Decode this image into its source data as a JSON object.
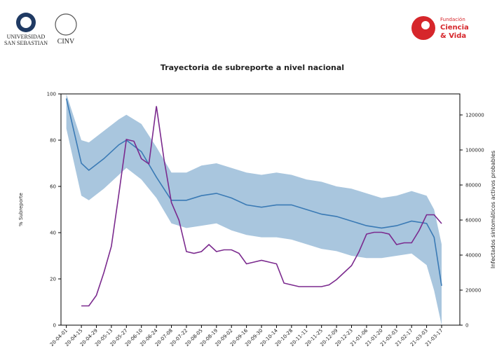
{
  "header": {
    "university_line1": "UNIVERSIDAD",
    "university_line2": "SAN SEBASTIAN",
    "institute": "CINV",
    "foundation_line1": "Fundación",
    "foundation_line2": "Ciencia",
    "foundation_line3": "& Vida"
  },
  "chart_data": {
    "type": "line",
    "title": "Trayectoria de subreporte a nivel nacional",
    "y_label": "% Subreporte",
    "y2_label": "Infectados sintomáticos activos probables",
    "xlim": [
      "2020-03-27",
      "2021-04-03"
    ],
    "xticks": [
      {
        "value": "2020-04-01",
        "label": "20-04-01"
      },
      {
        "value": "2020-04-15",
        "label": "20-04-15"
      },
      {
        "value": "2020-04-29",
        "label": "20-04-29"
      },
      {
        "value": "2020-05-13",
        "label": "20-05-13"
      },
      {
        "value": "2020-05-27",
        "label": "20-05-27"
      },
      {
        "value": "2020-06-10",
        "label": "20-06-10"
      },
      {
        "value": "2020-06-24",
        "label": "20-06-24"
      },
      {
        "value": "2020-07-08",
        "label": "20-07-08"
      },
      {
        "value": "2020-07-22",
        "label": "20-07-22"
      },
      {
        "value": "2020-08-05",
        "label": "20-08-05"
      },
      {
        "value": "2020-08-19",
        "label": "20-08-19"
      },
      {
        "value": "2020-09-02",
        "label": "20-09-02"
      },
      {
        "value": "2020-09-16",
        "label": "20-09-16"
      },
      {
        "value": "2020-09-30",
        "label": "20-09-30"
      },
      {
        "value": "2020-10-14",
        "label": "20-10-14"
      },
      {
        "value": "2020-10-28",
        "label": "20-10-28"
      },
      {
        "value": "2020-11-11",
        "label": "20-11-11"
      },
      {
        "value": "2020-11-25",
        "label": "20-11-25"
      },
      {
        "value": "2020-12-09",
        "label": "20-12-09"
      },
      {
        "value": "2020-12-23",
        "label": "20-12-23"
      },
      {
        "value": "2021-01-06",
        "label": "21-01-06"
      },
      {
        "value": "2021-01-20",
        "label": "21-01-20"
      },
      {
        "value": "2021-02-03",
        "label": "21-02-03"
      },
      {
        "value": "2021-02-17",
        "label": "21-02-17"
      },
      {
        "value": "2021-03-03",
        "label": "21-03-03"
      },
      {
        "value": "2021-03-17",
        "label": "21-03-17"
      }
    ],
    "ylim": [
      0,
      100
    ],
    "yticks": [
      0,
      20,
      40,
      60,
      80,
      100
    ],
    "y2lim": [
      0,
      132000
    ],
    "y2ticks": [
      0,
      20000,
      40000,
      60000,
      80000,
      100000,
      120000
    ],
    "band": {
      "color": "#a9c6de",
      "x": [
        "2020-04-01",
        "2020-04-15",
        "2020-04-22",
        "2020-05-06",
        "2020-05-20",
        "2020-05-27",
        "2020-06-10",
        "2020-06-24",
        "2020-07-08",
        "2020-07-22",
        "2020-08-05",
        "2020-08-19",
        "2020-09-02",
        "2020-09-16",
        "2020-09-30",
        "2020-10-14",
        "2020-10-28",
        "2020-11-11",
        "2020-11-25",
        "2020-12-09",
        "2020-12-23",
        "2021-01-06",
        "2021-01-20",
        "2021-02-03",
        "2021-02-17",
        "2021-03-03",
        "2021-03-10",
        "2021-03-17"
      ],
      "lower": [
        85,
        56,
        54,
        59,
        65,
        68,
        63,
        55,
        44,
        42,
        43,
        44,
        41,
        39,
        38,
        38,
        37,
        35,
        33,
        32,
        30,
        29,
        29,
        30,
        31,
        26,
        15,
        0
      ],
      "upper": [
        100,
        80,
        79,
        84,
        89,
        91,
        87,
        77,
        66,
        66,
        69,
        70,
        68,
        66,
        65,
        66,
        65,
        63,
        62,
        60,
        59,
        57,
        55,
        56,
        58,
        56,
        50,
        35
      ]
    },
    "series": [
      {
        "color": "#3a7ab5",
        "axis": "y",
        "x": [
          "2020-04-01",
          "2020-04-15",
          "2020-04-22",
          "2020-05-06",
          "2020-05-20",
          "2020-05-27",
          "2020-06-10",
          "2020-06-24",
          "2020-07-08",
          "2020-07-22",
          "2020-08-05",
          "2020-08-19",
          "2020-09-02",
          "2020-09-16",
          "2020-09-30",
          "2020-10-14",
          "2020-10-28",
          "2020-11-11",
          "2020-11-25",
          "2020-12-09",
          "2020-12-23",
          "2021-01-06",
          "2021-01-20",
          "2021-02-03",
          "2021-02-17",
          "2021-03-03",
          "2021-03-10",
          "2021-03-17"
        ],
        "values": [
          98,
          70,
          67,
          72,
          78,
          80,
          75,
          64,
          54,
          54,
          56,
          57,
          55,
          52,
          51,
          52,
          52,
          50,
          48,
          47,
          45,
          43,
          42,
          43,
          45,
          44,
          38,
          17
        ]
      },
      {
        "color": "#7b2a8e",
        "axis": "y2",
        "x": [
          "2020-04-15",
          "2020-04-22",
          "2020-04-29",
          "2020-05-06",
          "2020-05-13",
          "2020-05-20",
          "2020-05-27",
          "2020-06-03",
          "2020-06-10",
          "2020-06-17",
          "2020-06-24",
          "2020-07-01",
          "2020-07-08",
          "2020-07-15",
          "2020-07-22",
          "2020-07-29",
          "2020-08-05",
          "2020-08-12",
          "2020-08-19",
          "2020-08-26",
          "2020-09-02",
          "2020-09-09",
          "2020-09-16",
          "2020-09-23",
          "2020-09-30",
          "2020-10-07",
          "2020-10-14",
          "2020-10-21",
          "2020-10-28",
          "2020-11-04",
          "2020-11-11",
          "2020-11-18",
          "2020-11-25",
          "2020-12-02",
          "2020-12-09",
          "2020-12-16",
          "2020-12-23",
          "2020-12-30",
          "2021-01-06",
          "2021-01-13",
          "2021-01-20",
          "2021-01-27",
          "2021-02-03",
          "2021-02-10",
          "2021-02-17",
          "2021-02-24",
          "2021-03-03",
          "2021-03-10",
          "2021-03-17"
        ],
        "values": [
          11000,
          11000,
          17000,
          30000,
          45000,
          75000,
          106000,
          105000,
          95000,
          92000,
          125000,
          95000,
          70000,
          60000,
          42000,
          41000,
          42000,
          46000,
          42000,
          43000,
          43000,
          41000,
          35000,
          36000,
          37000,
          36000,
          35000,
          24000,
          23000,
          22000,
          22000,
          22000,
          22000,
          23000,
          26000,
          30000,
          34000,
          42000,
          52000,
          53000,
          53000,
          52000,
          46000,
          47000,
          47000,
          54000,
          63000,
          63000,
          58000
        ]
      }
    ]
  }
}
